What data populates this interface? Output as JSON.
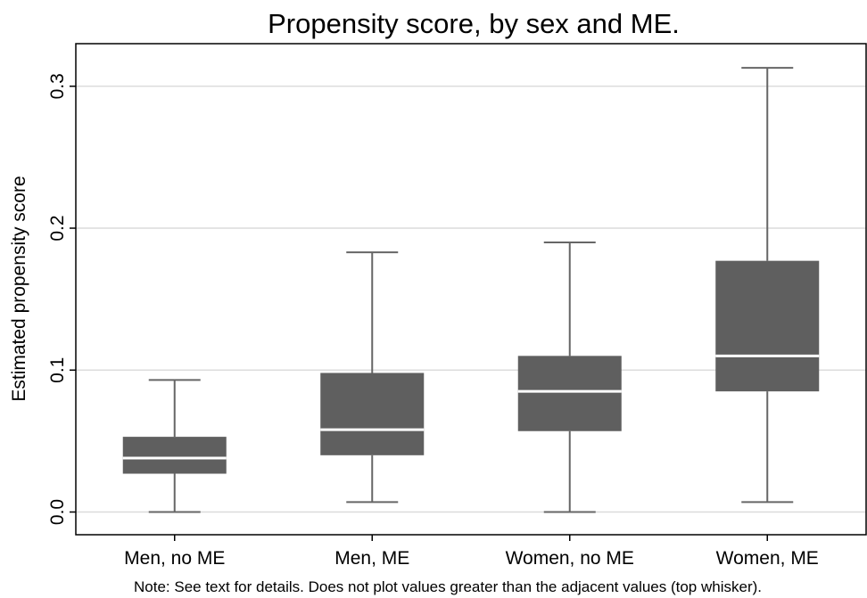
{
  "chart_data": {
    "type": "box",
    "title": "Propensity score, by sex and ME.",
    "xlabel": "",
    "ylabel": "Estimated propensity score",
    "ylim": [
      -0.016,
      0.33
    ],
    "yticks": [
      0.0,
      0.1,
      0.2,
      0.3
    ],
    "ytick_labels": [
      "0.0",
      "0.1",
      "0.2",
      "0.3"
    ],
    "grid": true,
    "categories": [
      "Men, no ME",
      "Men, ME",
      "Women, no ME",
      "Women, ME"
    ],
    "boxes": [
      {
        "min": 0.0,
        "q1": 0.027,
        "median": 0.038,
        "q3": 0.053,
        "max": 0.093
      },
      {
        "min": 0.007,
        "q1": 0.04,
        "median": 0.058,
        "q3": 0.098,
        "max": 0.183
      },
      {
        "min": 0.0,
        "q1": 0.057,
        "median": 0.085,
        "q3": 0.11,
        "max": 0.19
      },
      {
        "min": 0.007,
        "q1": 0.085,
        "median": 0.11,
        "q3": 0.177,
        "max": 0.313
      }
    ],
    "note": "Note: See text for details. Does not plot values greater than the adjacent values (top whisker).",
    "colors": {
      "box": "#5f5f5f",
      "whisker": "#666666",
      "median": "#ffffff",
      "grid": "#dcdcdc",
      "frame": "#000000"
    }
  }
}
